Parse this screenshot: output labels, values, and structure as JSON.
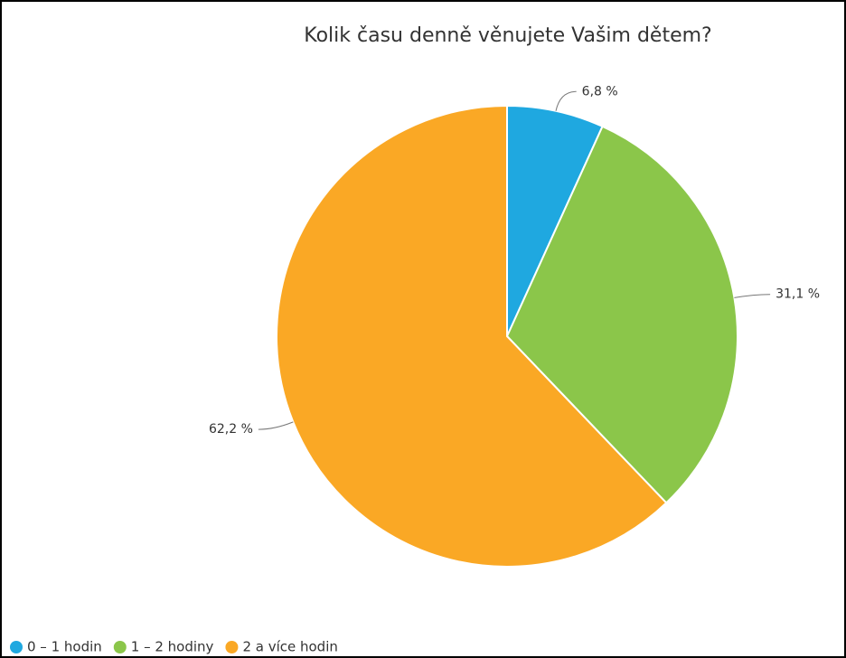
{
  "chart_data": {
    "type": "pie",
    "title": "Kolik času denně věnujete Vašim dětem?",
    "categories": [
      "0 – 1 hodin",
      "1 – 2 hodiny",
      "2 a více hodin"
    ],
    "values": [
      6.8,
      31.1,
      62.2
    ],
    "value_labels": [
      "6,8 %",
      "31,1 %",
      "62,2 %"
    ],
    "colors": [
      "#1fa8e0",
      "#8bc64a",
      "#faa825"
    ],
    "legend": "bottom-left"
  }
}
